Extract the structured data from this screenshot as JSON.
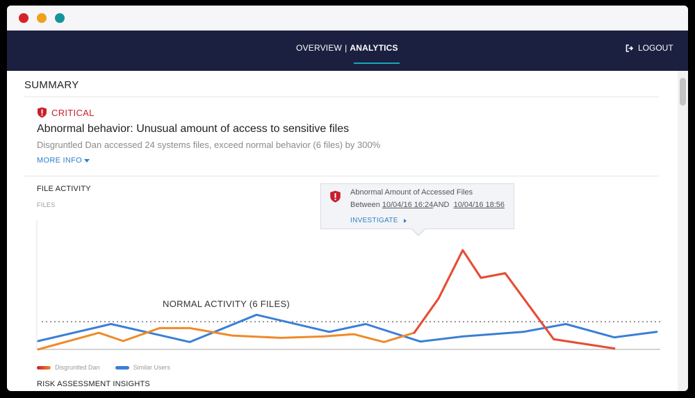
{
  "window": {
    "controls": [
      {
        "name": "close",
        "color": "#d6222a"
      },
      {
        "name": "minimize",
        "color": "#f0a11a"
      },
      {
        "name": "zoom",
        "color": "#13959a"
      }
    ]
  },
  "nav": {
    "overview_label": "OVERVIEW",
    "separator": "|",
    "analytics_label": "ANALYTICS",
    "logout_label": "LOGOUT"
  },
  "summary": {
    "title": "SUMMARY",
    "severity": "CRITICAL",
    "headline": "Abnormal behavior: Unusual amount of access to sensitive files",
    "description": "Disgruntled Dan accessed 24 systems files, exceed normal behavior (6 files) by 300%",
    "more_info_label": "MORE INFO"
  },
  "file_activity": {
    "title": "FILE ACTIVITY",
    "y_label": "FILES",
    "normal_label": "NORMAL ACTIVITY (6 FILES)",
    "tooltip": {
      "title": "Abnormal Amount of Accessed Files",
      "between_label": "Between",
      "start": "10/04/16 16:24",
      "and_label": "AND",
      "end": "10/04/16 18:56",
      "link_label": "INVESTIGATE"
    },
    "legend": [
      {
        "name": "Disgruntled Dan"
      },
      {
        "name": "Similar Users"
      }
    ]
  },
  "risk": {
    "title": "RISK ASSESSMENT INSIGHTS"
  },
  "colors": {
    "critical": "#c81f2c",
    "dan_line": "#ef8a2a",
    "dan_spike": "#e54d38",
    "similar_line": "#3a7fd6",
    "link": "#2e80c8",
    "navbar": "#1b2040"
  },
  "chart_data": {
    "type": "line",
    "y_label": "FILES",
    "ylim": [
      0,
      28
    ],
    "threshold": 6,
    "grid": false,
    "legend_position": "bottom-left",
    "series": [
      {
        "name": "Disgruntled Dan",
        "x": [
          0,
          1,
          1.4,
          2,
          2.5,
          3.2,
          4,
          4.7,
          5.2,
          5.7,
          6.2,
          6.6,
          7,
          7.3,
          7.7,
          8.5,
          9.5
        ],
        "values": [
          0,
          3.6,
          1.8,
          4.6,
          4.6,
          3,
          2.5,
          2.8,
          3.3,
          1.6,
          3.6,
          11,
          21.5,
          15.5,
          16.5,
          2.2,
          0.2
        ]
      },
      {
        "name": "Similar Users",
        "x": [
          0,
          1.2,
          2.5,
          3.6,
          4.8,
          5.4,
          6.3,
          7,
          8,
          8.7,
          9.5,
          10.2
        ],
        "values": [
          1.8,
          5.5,
          1.6,
          7.5,
          3.8,
          5.5,
          1.7,
          2.8,
          3.8,
          5.5,
          2.6,
          3.8
        ]
      }
    ]
  }
}
